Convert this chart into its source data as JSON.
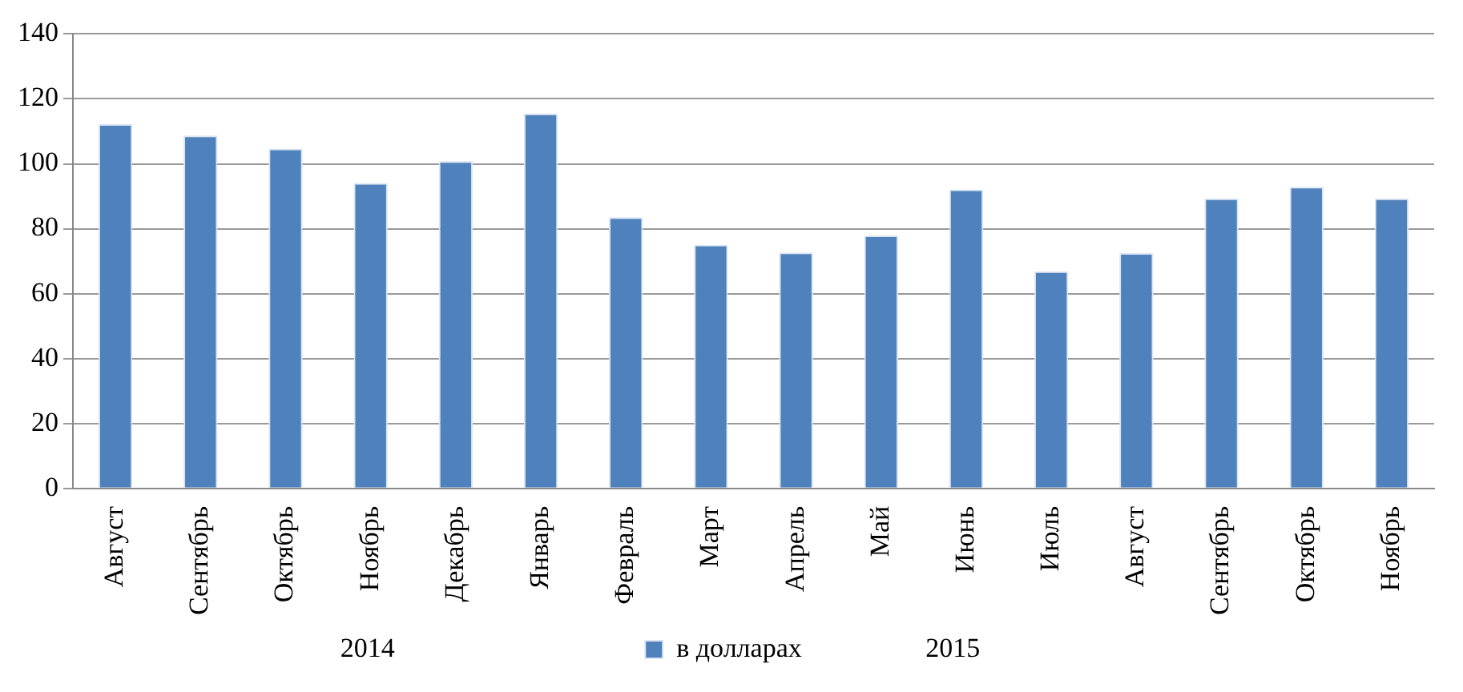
{
  "chart_data": {
    "type": "bar",
    "categories": [
      "Август",
      "Сентябрь",
      "Октябрь",
      "Ноябрь",
      "Декабрь",
      "Январь",
      "Февраль",
      "Март",
      "Апрель",
      "Май",
      "Июнь",
      "Июль",
      "Август",
      "Сентябрь",
      "Октябрь",
      "Ноябрь"
    ],
    "series": [
      {
        "name": "в долларах",
        "color": "#4f81bd",
        "values": [
          112.2,
          108.7,
          104.7,
          94.1,
          100.8,
          115.5,
          83.5,
          75.1,
          72.7,
          77.9,
          92.1,
          66.9,
          72.5,
          89.3,
          92.9,
          89.3
        ]
      }
    ],
    "ylim": [
      0,
      140
    ],
    "yticks": [
      0,
      20,
      40,
      60,
      80,
      100,
      120,
      140
    ],
    "grid": "y",
    "legend": "bottom",
    "annotations": [
      "2014",
      "2015"
    ]
  }
}
